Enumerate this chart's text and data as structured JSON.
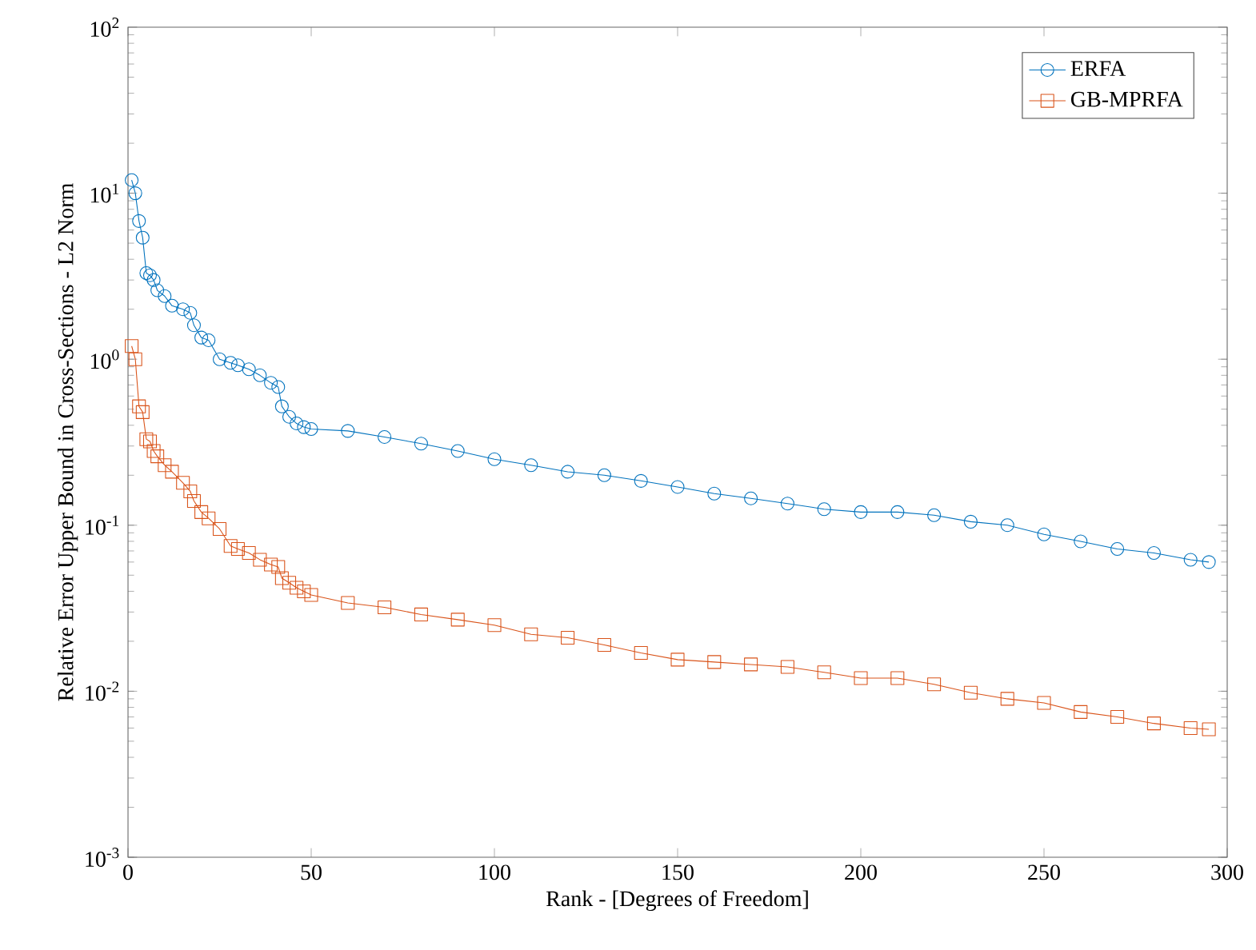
{
  "chart_data": {
    "type": "line",
    "xlabel": "Rank - [Degrees of Freedom]",
    "ylabel": "Relative Error Upper Bound in Cross-Sections - L2 Norm",
    "log": "y",
    "legend": "top right",
    "grid": false,
    "xlim": [
      0,
      300
    ],
    "xticks": [
      0,
      50,
      100,
      150,
      200,
      250,
      300
    ],
    "ylim": [
      0.001,
      100
    ],
    "yticks": [
      {
        "value": 0.001,
        "label": "10$^{-3}$"
      },
      {
        "value": 0.01,
        "label": "10$^{-2}$"
      },
      {
        "value": 0.1,
        "label": "10$^{-1}$"
      },
      {
        "value": 1,
        "label": "10$^{0}$"
      },
      {
        "value": 10,
        "label": "10$^{1}$"
      },
      {
        "value": 100,
        "label": "10$^{2}$"
      }
    ],
    "x": [
      1,
      2,
      3,
      4,
      5,
      6,
      7,
      8,
      10,
      12,
      15,
      17,
      18,
      20,
      22,
      25,
      28,
      30,
      33,
      36,
      39,
      41,
      42,
      44,
      46,
      48,
      50,
      60,
      70,
      80,
      90,
      100,
      110,
      120,
      130,
      140,
      150,
      160,
      170,
      180,
      190,
      200,
      210,
      220,
      230,
      240,
      250,
      260,
      270,
      280,
      290,
      295
    ],
    "series": [
      {
        "name": "ERFA",
        "color": "#0072bd",
        "marker": "circle",
        "values": [
          12,
          10,
          6.8,
          5.4,
          3.3,
          3.2,
          3.0,
          2.6,
          2.4,
          2.1,
          2.0,
          1.9,
          1.6,
          1.35,
          1.3,
          1.0,
          0.95,
          0.92,
          0.87,
          0.8,
          0.72,
          0.68,
          0.52,
          0.45,
          0.41,
          0.39,
          0.38,
          0.37,
          0.34,
          0.31,
          0.28,
          0.25,
          0.23,
          0.21,
          0.2,
          0.185,
          0.17,
          0.155,
          0.145,
          0.135,
          0.125,
          0.12,
          0.12,
          0.115,
          0.105,
          0.1,
          0.088,
          0.08,
          0.072,
          0.068,
          0.062,
          0.06
        ]
      },
      {
        "name": "GB-MPRFA",
        "color": "#d95319",
        "marker": "square",
        "values": [
          1.2,
          1.0,
          0.52,
          0.48,
          0.33,
          0.32,
          0.28,
          0.26,
          0.23,
          0.21,
          0.18,
          0.16,
          0.14,
          0.12,
          0.11,
          0.095,
          0.075,
          0.072,
          0.068,
          0.062,
          0.058,
          0.056,
          0.048,
          0.045,
          0.042,
          0.04,
          0.038,
          0.034,
          0.032,
          0.029,
          0.027,
          0.025,
          0.022,
          0.021,
          0.019,
          0.017,
          0.0155,
          0.015,
          0.0145,
          0.014,
          0.013,
          0.012,
          0.012,
          0.011,
          0.0098,
          0.009,
          0.0085,
          0.0075,
          0.007,
          0.0064,
          0.006,
          0.0059
        ]
      }
    ]
  }
}
